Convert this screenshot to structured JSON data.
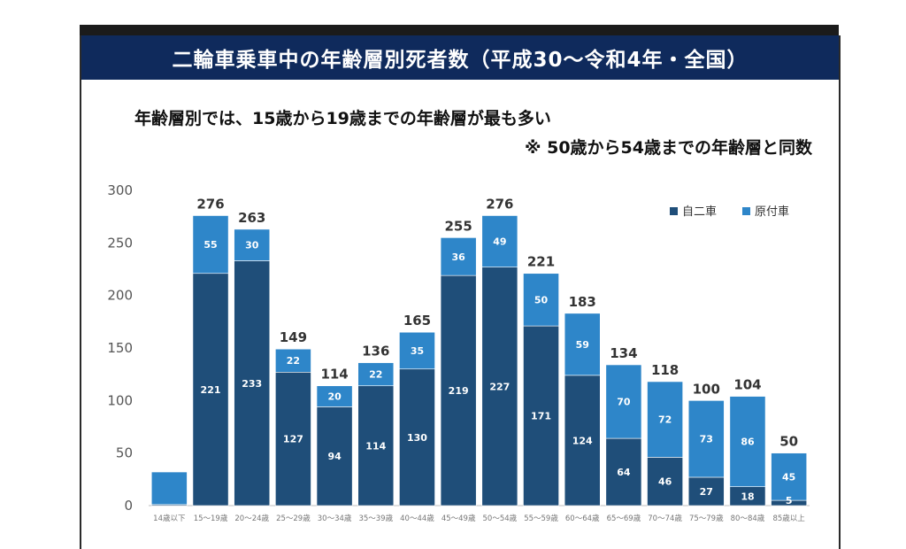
{
  "title": "二輪車乗車中の年齢層別死者数（平成30～令和4年・全国）",
  "subtitle_line1": "年齢層別では、15歳から19歳までの年齢層が最も多い",
  "subtitle_line2": "※ 50歳から54歳までの年齢層と同数",
  "colors": {
    "title_bg": "#0f2a5c",
    "jinisha": "#1f4e79",
    "gentsuki": "#2e86c9",
    "axis_text": "#555555"
  },
  "chart_data": {
    "type": "bar",
    "stacked": true,
    "categories": [
      "14歳以下",
      "15～19歳",
      "20～24歳",
      "25～29歳",
      "30～34歳",
      "35～39歳",
      "40～44歳",
      "45～49歳",
      "50～54歳",
      "55～59歳",
      "60～64歳",
      "65～69歳",
      "70～74歳",
      "75～79歳",
      "80～84歳",
      "85歳以上"
    ],
    "series": [
      {
        "name": "自二車",
        "values": [
          1,
          221,
          233,
          127,
          94,
          114,
          130,
          219,
          227,
          171,
          124,
          64,
          46,
          27,
          18,
          5
        ],
        "labels": [
          "",
          "221",
          "233",
          "127",
          "94",
          "114",
          "130",
          "219",
          "227",
          "171",
          "124",
          "64",
          "46",
          "27",
          "18",
          "5"
        ]
      },
      {
        "name": "原付車",
        "values": [
          31,
          55,
          30,
          22,
          20,
          22,
          35,
          36,
          49,
          50,
          59,
          70,
          72,
          73,
          86,
          45
        ],
        "labels": [
          "",
          "55",
          "30",
          "22",
          "20",
          "22",
          "35",
          "36",
          "49",
          "50",
          "59",
          "70",
          "72",
          "73",
          "86",
          "45"
        ]
      }
    ],
    "totals": [
      "",
      "276",
      "263",
      "149",
      "114",
      "136",
      "165",
      "255",
      "276",
      "221",
      "183",
      "134",
      "118",
      "100",
      "104",
      "50"
    ],
    "yticks": [
      "0",
      "50",
      "100",
      "150",
      "200",
      "250",
      "300"
    ],
    "ylim": [
      0,
      300
    ],
    "legend_position": "top-right"
  }
}
